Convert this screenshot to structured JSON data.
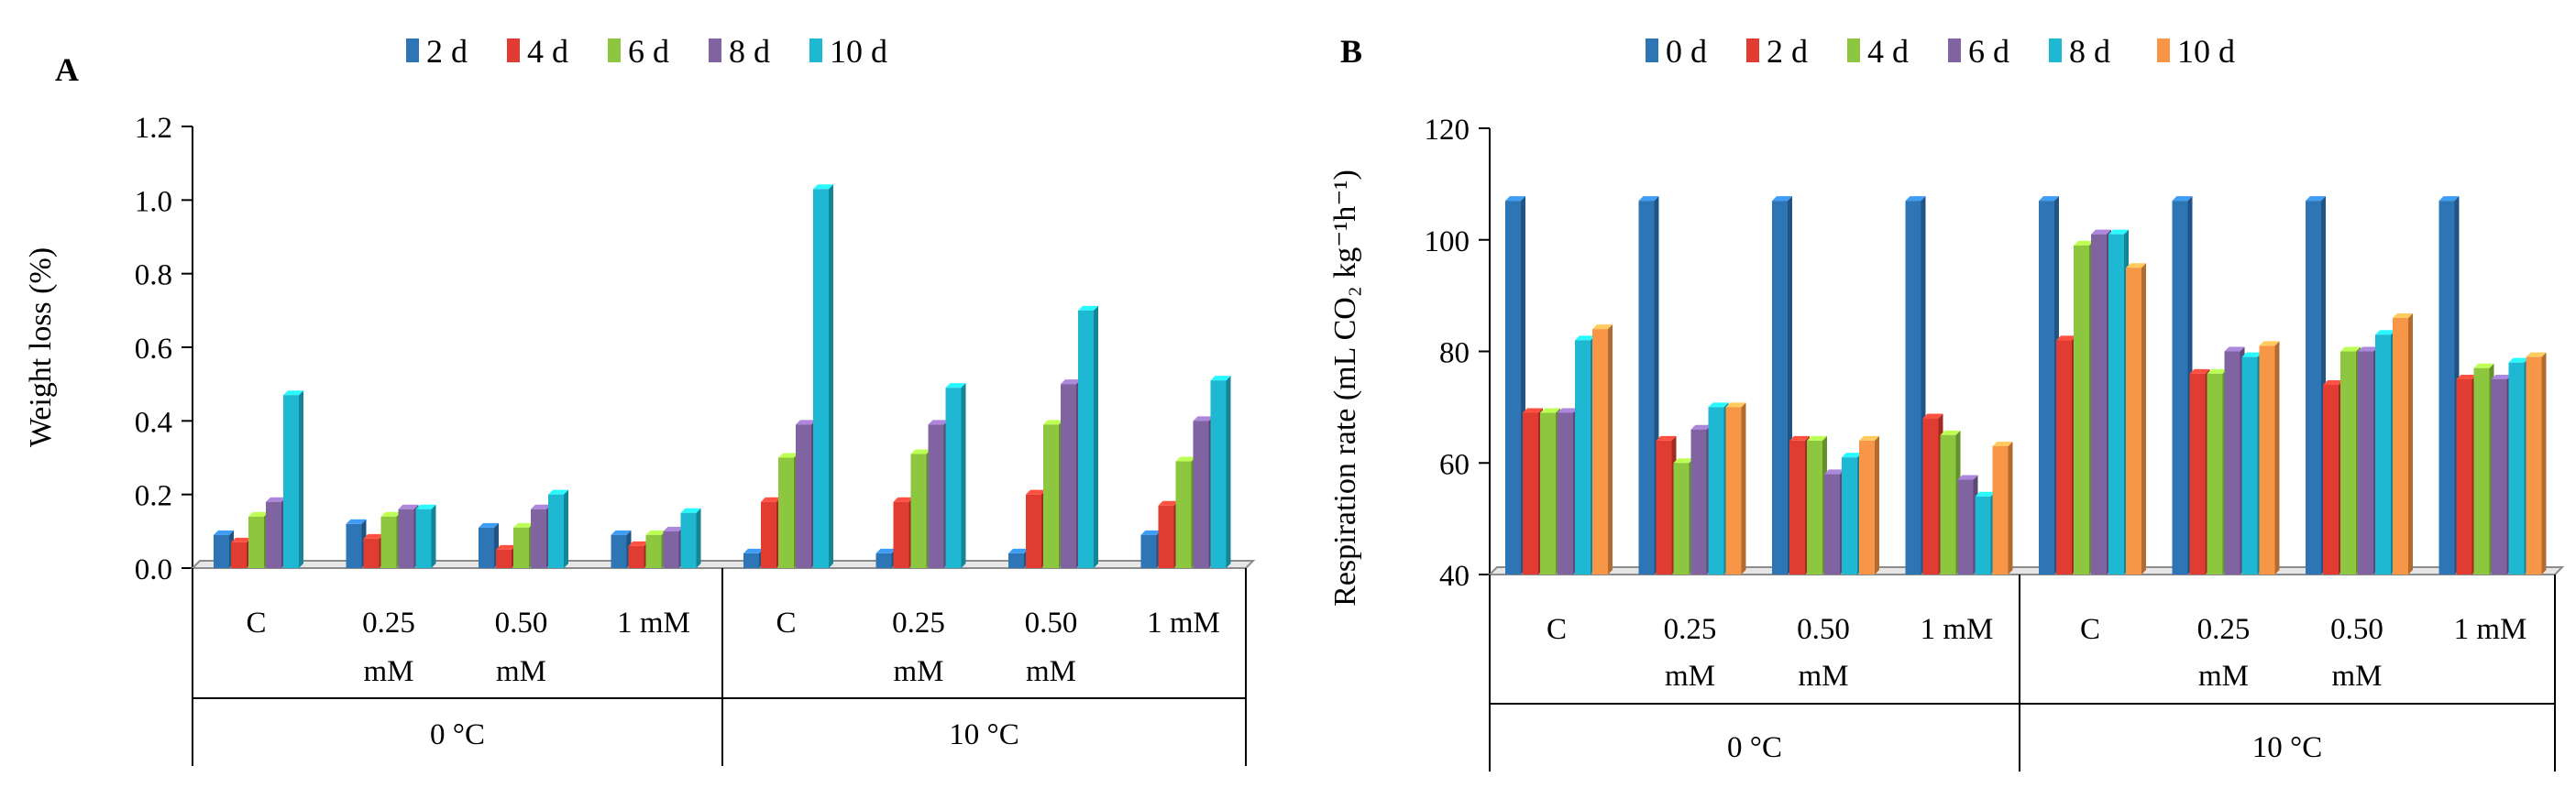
{
  "chart_data": [
    {
      "type": "bar",
      "panel": "A",
      "title": "",
      "ylabel": "Weight loss  (%)",
      "xlabel": "",
      "ylim": [
        0,
        1.2
      ],
      "yticks": [
        "0.0",
        "0.2",
        "0.4",
        "0.6",
        "0.8",
        "1.0",
        "1.2"
      ],
      "groups": [
        "0 °C",
        "10 °C"
      ],
      "categories": [
        [
          "C"
        ],
        [
          "0.25",
          "mM"
        ],
        [
          "0.50",
          "mM"
        ],
        [
          "1 mM"
        ],
        [
          "C"
        ],
        [
          "0.25",
          "mM"
        ],
        [
          "0.50",
          "mM"
        ],
        [
          "1 mM"
        ]
      ],
      "series": [
        {
          "name": "2 d",
          "color": "#2E75B6",
          "values": [
            0.09,
            0.12,
            0.11,
            0.09,
            0.04,
            0.04,
            0.04,
            0.09
          ]
        },
        {
          "name": "4 d",
          "color": "#E03C31",
          "values": [
            0.07,
            0.08,
            0.05,
            0.06,
            0.18,
            0.18,
            0.2,
            0.17
          ]
        },
        {
          "name": "6 d",
          "color": "#8DC63F",
          "values": [
            0.14,
            0.14,
            0.11,
            0.09,
            0.3,
            0.31,
            0.39,
            0.29
          ]
        },
        {
          "name": "8 d",
          "color": "#8064A2",
          "values": [
            0.18,
            0.16,
            0.16,
            0.1,
            0.39,
            0.39,
            0.5,
            0.4
          ]
        },
        {
          "name": "10 d",
          "color": "#1FB8D2",
          "values": [
            0.47,
            0.16,
            0.2,
            0.15,
            1.03,
            0.49,
            0.7,
            0.51
          ]
        }
      ]
    },
    {
      "type": "bar",
      "panel": "B",
      "title": "",
      "ylabel": "Respiration rate (mL CO₂ kg⁻¹h⁻¹)",
      "xlabel": "",
      "ylim": [
        40,
        120
      ],
      "yticks": [
        "40",
        "60",
        "80",
        "100",
        "120"
      ],
      "groups": [
        "0 °C",
        "10 °C"
      ],
      "categories": [
        [
          "C"
        ],
        [
          "0.25",
          "mM"
        ],
        [
          "0.50",
          "mM"
        ],
        [
          "1 mM"
        ],
        [
          "C"
        ],
        [
          "0.25",
          "mM"
        ],
        [
          "0.50",
          "mM"
        ],
        [
          "1 mM"
        ]
      ],
      "series": [
        {
          "name": "0 d",
          "color": "#2E75B6",
          "values": [
            107,
            107,
            107,
            107,
            107,
            107,
            107,
            107
          ]
        },
        {
          "name": "2 d",
          "color": "#E03C31",
          "values": [
            69,
            64,
            64,
            68,
            82,
            76,
            74,
            75
          ]
        },
        {
          "name": "4 d",
          "color": "#8DC63F",
          "values": [
            69,
            60,
            64,
            65,
            99,
            76,
            80,
            77
          ]
        },
        {
          "name": "6 d",
          "color": "#8064A2",
          "values": [
            69,
            66,
            58,
            57,
            101,
            80,
            80,
            75
          ]
        },
        {
          "name": "8 d",
          "color": "#1FB8D2",
          "values": [
            82,
            70,
            61,
            54,
            101,
            79,
            83,
            78
          ]
        },
        {
          "name": "10 d",
          "color": "#F79646",
          "values": [
            84,
            70,
            64,
            63,
            95,
            81,
            86,
            79
          ]
        }
      ]
    }
  ]
}
